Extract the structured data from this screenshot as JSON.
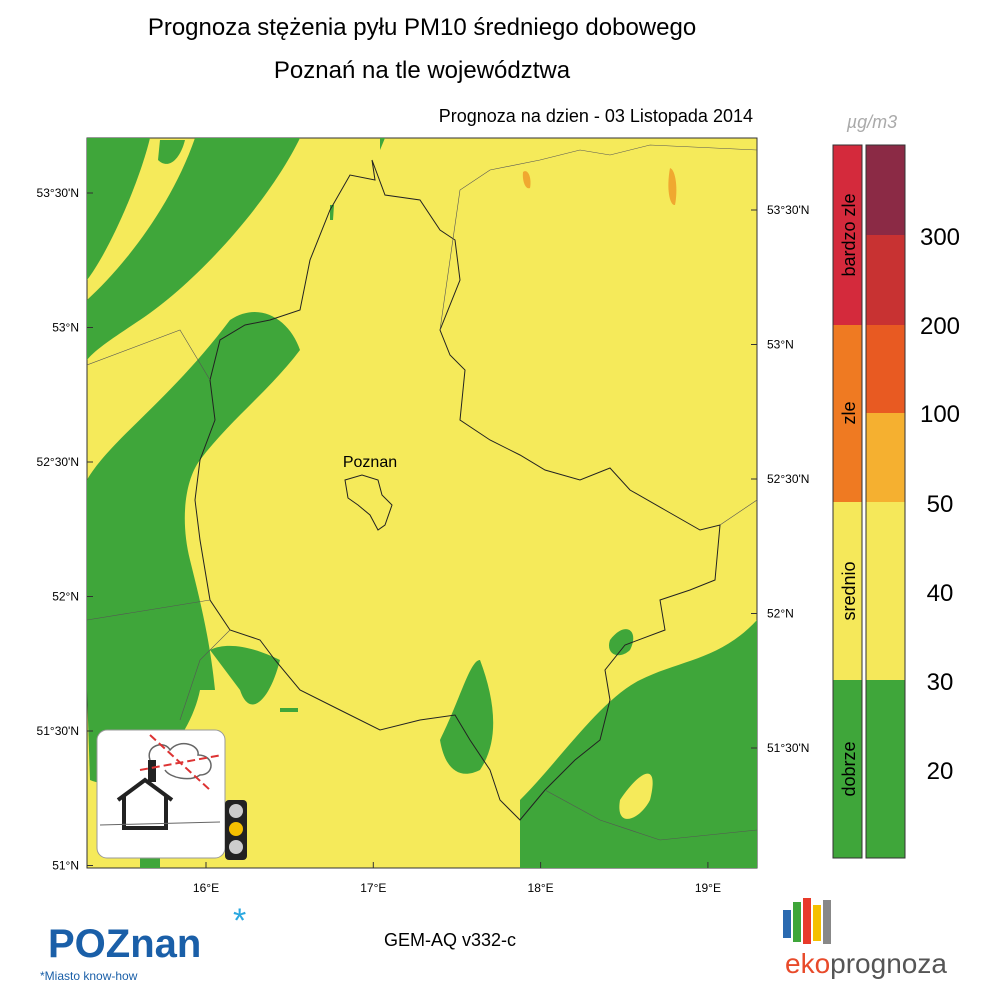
{
  "header": {
    "title": "Prognoza stężenia pyłu PM10 średniego dobowego",
    "subtitle": "Poznań na tle województwa",
    "date": "Prognoza na dzien -  03 Listopada 2014"
  },
  "map": {
    "city": "Poznan",
    "left_lat_labels": [
      "53°30'N",
      "53°N",
      "52°30'N",
      "52°N",
      "51°30'N",
      "51°N"
    ],
    "right_lat_labels": [
      "53°30'N",
      "53°N",
      "52°30'N",
      "52°N",
      "51°30'N"
    ],
    "lon_labels": [
      "16°E",
      "17°E",
      "18°E",
      "19°E"
    ]
  },
  "legend": {
    "unit": "µg/m3",
    "categories": [
      "bardzo zle",
      "zle",
      "srednio",
      "dobrze"
    ],
    "levels": [
      300,
      200,
      100,
      50,
      40,
      30,
      20
    ]
  },
  "footer": {
    "model": "GEM-AQ v332-c",
    "logo_left": "POZnan",
    "logo_left_tagline": "*Miasto know-how",
    "logo_right_1": "eko",
    "logo_right_2": "prognoza"
  }
}
